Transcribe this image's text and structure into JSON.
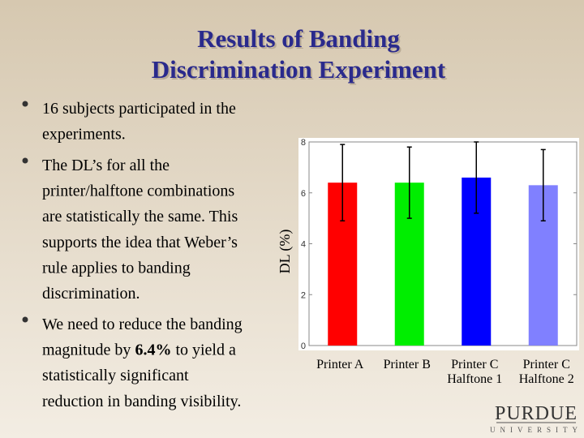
{
  "slide": {
    "title_lines": [
      "Results of Banding",
      "Discrimination Experiment"
    ],
    "bullets": [
      {
        "lines": [
          [
            {
              "text": "16 subjects participated in the"
            }
          ],
          [
            {
              "text": "experiments."
            }
          ]
        ]
      },
      {
        "lines": [
          [
            {
              "text": "The DL’s for all the"
            }
          ],
          [
            {
              "text": "printer/halftone combinations"
            }
          ],
          [
            {
              "text": "are statistically the same. This"
            }
          ],
          [
            {
              "text": "supports the idea that Weber’s"
            }
          ],
          [
            {
              "text": "rule applies to banding"
            }
          ],
          [
            {
              "text": "discrimination."
            }
          ]
        ]
      },
      {
        "lines": [
          [
            {
              "text": "We need to reduce the banding"
            }
          ],
          [
            {
              "text": "magnitude by "
            },
            {
              "text": "6.4%",
              "bold": true
            },
            {
              "text": "  to yield a"
            }
          ],
          [
            {
              "text": "statistically significant"
            }
          ],
          [
            {
              "text": "reduction in banding visibility."
            }
          ]
        ]
      }
    ],
    "logo": {
      "name": "PURDUE",
      "sub": "UNIVERSITY"
    }
  },
  "chart_data": {
    "type": "bar",
    "ylabel": "DL (%)",
    "categories": [
      [
        "Printer A"
      ],
      [
        "Printer B"
      ],
      [
        "Printer C",
        "Halftone 1"
      ],
      [
        "Printer C",
        "Halftone 2"
      ]
    ],
    "values": [
      6.4,
      6.4,
      6.6,
      6.3
    ],
    "errors": [
      1.5,
      1.4,
      1.4,
      1.4
    ],
    "colors": [
      "#ff0000",
      "#00ee00",
      "#0000ff",
      "#8080ff"
    ],
    "ylim": [
      0,
      8
    ],
    "yticks": [
      0,
      2,
      4,
      6,
      8
    ]
  }
}
